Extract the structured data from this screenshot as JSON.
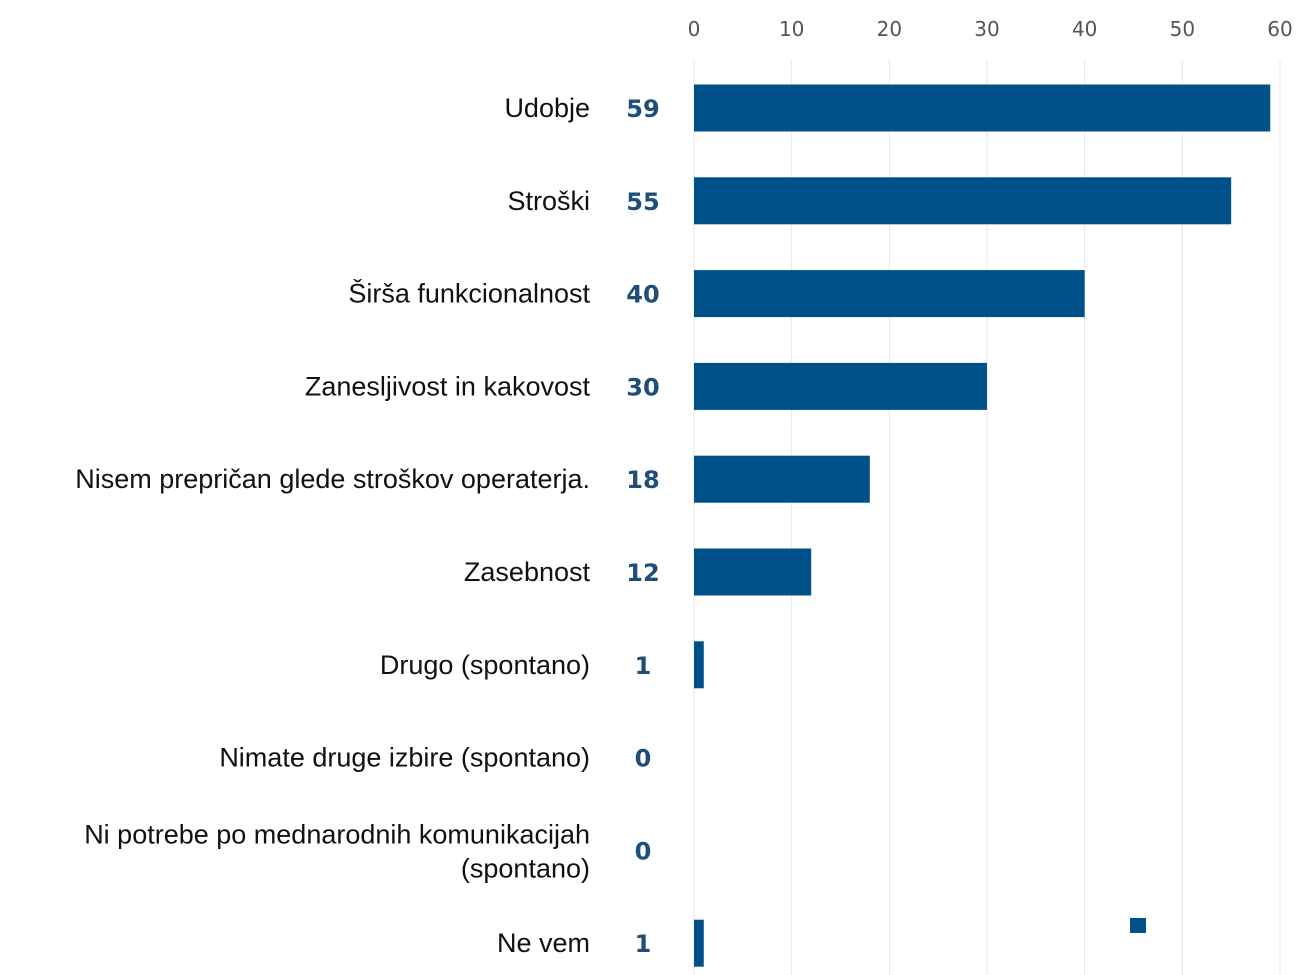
{
  "chart_data": {
    "type": "bar",
    "orientation": "horizontal",
    "categories": [
      "Udobje",
      "Stroški",
      "Širša funkcionalnost",
      "Zanesljivost in kakovost",
      "Nisem prepričan glede stroškov operaterja.",
      "Zasebnost",
      "Drugo (spontano)",
      "Nimate druge izbire (spontano)",
      "Ni potrebe po mednarodnih komunikacijah (spontano)",
      "Ne vem"
    ],
    "values": [
      59,
      55,
      40,
      30,
      18,
      12,
      1,
      0,
      0,
      1
    ],
    "xlim": [
      0,
      60
    ],
    "xticks": [
      0,
      10,
      20,
      30,
      40,
      50,
      60
    ],
    "axis_position": "top",
    "grid": true,
    "legend": "bottom-right",
    "bar_color": "#00508a",
    "value_label_color": "#1f4e79"
  }
}
